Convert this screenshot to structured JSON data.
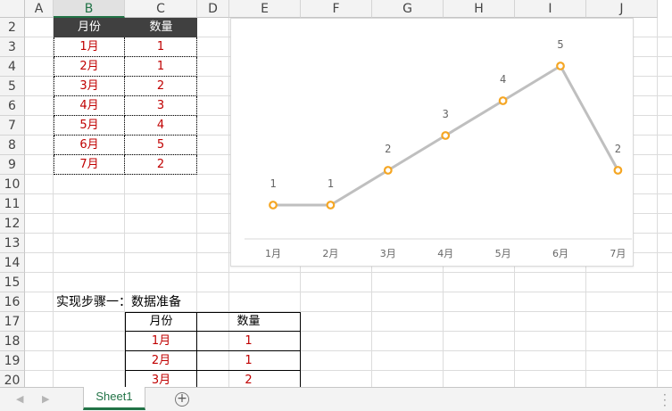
{
  "columns": [
    "A",
    "B",
    "C",
    "D",
    "E",
    "F",
    "G",
    "H",
    "I",
    "J"
  ],
  "selected_column": "B",
  "rows": [
    "2",
    "3",
    "4",
    "5",
    "6",
    "7",
    "8",
    "9",
    "10",
    "11",
    "12",
    "13",
    "14",
    "15",
    "16",
    "17",
    "18",
    "19",
    "20"
  ],
  "table1": {
    "headers": [
      "月份",
      "数量"
    ],
    "rows": [
      [
        "1月",
        "1"
      ],
      [
        "2月",
        "1"
      ],
      [
        "3月",
        "2"
      ],
      [
        "4月",
        "3"
      ],
      [
        "5月",
        "4"
      ],
      [
        "6月",
        "5"
      ],
      [
        "7月",
        "2"
      ]
    ]
  },
  "step_label": "实现步骤一：数据准备",
  "table2": {
    "headers": [
      "月份",
      "数量"
    ],
    "rows": [
      [
        "1月",
        "1"
      ],
      [
        "2月",
        "1"
      ],
      [
        "3月",
        "2"
      ]
    ]
  },
  "chart_data": {
    "type": "line",
    "categories": [
      "1月",
      "2月",
      "3月",
      "4月",
      "5月",
      "6月",
      "7月"
    ],
    "series": [
      {
        "values": [
          1,
          1,
          2,
          3,
          4,
          5,
          2
        ]
      }
    ],
    "data_labels": [
      "1",
      "1",
      "2",
      "3",
      "4",
      "5",
      "2"
    ],
    "title": "",
    "xlabel": "",
    "ylabel": "",
    "ylim": [
      0,
      6
    ],
    "grid": false,
    "legend": "none",
    "line_color": "#bfbfbf",
    "marker_color": "#f5a623"
  },
  "sheet_tabs": [
    "Sheet1"
  ],
  "colors": {
    "accent": "#217346",
    "data_text": "#c00000",
    "header_fill": "#404040"
  }
}
